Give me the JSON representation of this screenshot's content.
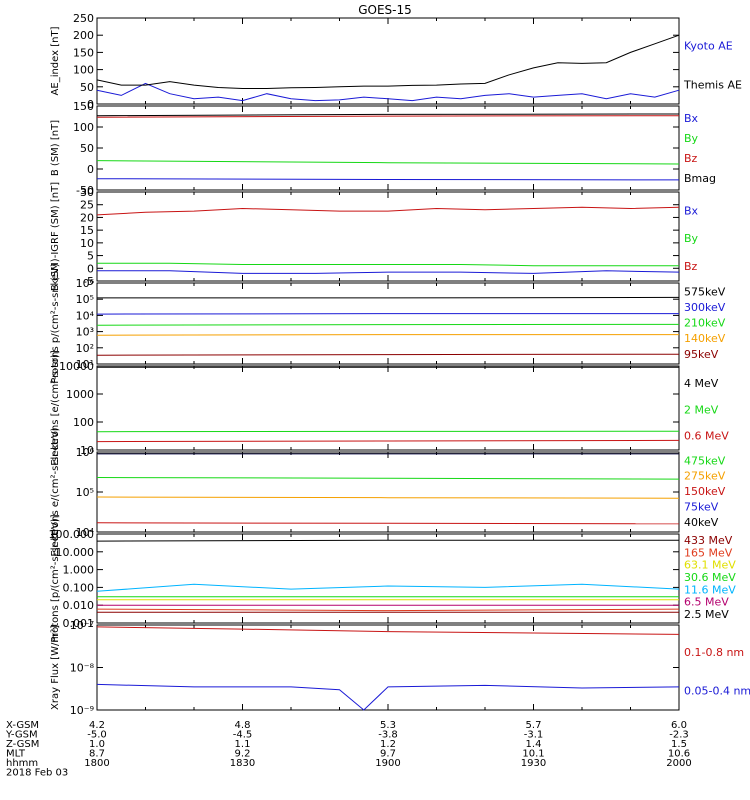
{
  "title": "GOES-15",
  "colors": {
    "black": "#000000",
    "blue": "#1a1ad6",
    "green": "#16d816",
    "red": "#c81414",
    "darkred": "#8b0000",
    "orange": "#f5a000",
    "yellow": "#e0e000",
    "cyan": "#00b4ff",
    "magenta": "#b4006e",
    "red2": "#e03c1e"
  },
  "orbit_table": {
    "row_labels": [
      "X-GSM",
      "Y-GSM",
      "Z-GSM",
      "MLT",
      "hhmm",
      "2018 Feb 03"
    ],
    "columns": [
      [
        "4.2",
        "-5.0",
        "1.0",
        "8.7",
        "1800"
      ],
      [
        "4.8",
        "-4.5",
        "1.1",
        "9.2",
        "1830"
      ],
      [
        "5.3",
        "-3.8",
        "1.2",
        "9.7",
        "1900"
      ],
      [
        "5.7",
        "-3.1",
        "1.4",
        "10.1",
        "1930"
      ],
      [
        "6.0",
        "-2.3",
        "1.5",
        "10.6",
        "2000"
      ]
    ]
  },
  "chart_data": [
    {
      "type": "line",
      "ylabel": "AE_index [nT]",
      "x": [
        1800,
        2000
      ],
      "ylim": [
        0,
        250
      ],
      "yticks": [
        "0",
        "50",
        "100",
        "150",
        "200",
        "250"
      ],
      "series": [
        {
          "name": "Kyoto AE",
          "color": "blue",
          "x": [
            1800,
            1805,
            1810,
            1815,
            1820,
            1825,
            1830,
            1835,
            1840,
            1845,
            1850,
            1855,
            1900,
            1905,
            1910,
            1915,
            1920,
            1925,
            1930,
            1935,
            1940,
            1945,
            1950,
            1955,
            2000
          ],
          "values": [
            40,
            25,
            60,
            30,
            15,
            20,
            10,
            30,
            15,
            10,
            12,
            20,
            15,
            10,
            20,
            15,
            25,
            30,
            20,
            25,
            30,
            15,
            30,
            20,
            40
          ]
        },
        {
          "name": "Themis AE",
          "color": "black",
          "x": [
            1800,
            1805,
            1810,
            1815,
            1820,
            1825,
            1830,
            1835,
            1840,
            1845,
            1850,
            1855,
            1900,
            1905,
            1910,
            1915,
            1920,
            1925,
            1930,
            1935,
            1940,
            1945,
            1950,
            1955,
            2000
          ],
          "values": [
            70,
            55,
            55,
            65,
            55,
            48,
            45,
            45,
            47,
            48,
            50,
            52,
            52,
            54,
            55,
            58,
            60,
            85,
            105,
            120,
            118,
            120,
            150,
            175,
            200
          ]
        }
      ]
    },
    {
      "type": "line",
      "ylabel": "B (SM) [nT]",
      "x": [
        1800,
        2000
      ],
      "ylim": [
        -50,
        150
      ],
      "yticks": [
        "-50",
        "0",
        "50",
        "100",
        "150"
      ],
      "series": [
        {
          "name": "Bx",
          "color": "blue",
          "x": [
            1800,
            1900,
            2000
          ],
          "values": [
            -23,
            -25,
            -26
          ]
        },
        {
          "name": "By",
          "color": "green",
          "x": [
            1800,
            1900,
            2000
          ],
          "values": [
            20,
            15,
            12
          ]
        },
        {
          "name": "Bz",
          "color": "red",
          "x": [
            1800,
            1900,
            2000
          ],
          "values": [
            123,
            126,
            127
          ]
        },
        {
          "name": "Bmag",
          "color": "black",
          "x": [
            1800,
            1900,
            2000
          ],
          "values": [
            127,
            130,
            131
          ]
        }
      ]
    },
    {
      "type": "line",
      "ylabel": "B (SM)-IGRF (SM) [nT]",
      "x": [
        1800,
        2000
      ],
      "ylim": [
        -5,
        30
      ],
      "yticks": [
        "-5",
        "0",
        "5",
        "10",
        "15",
        "20",
        "25",
        "30"
      ],
      "series": [
        {
          "name": "Bx",
          "color": "blue",
          "x": [
            1800,
            1815,
            1830,
            1845,
            1900,
            1915,
            1930,
            1945,
            2000
          ],
          "values": [
            -1,
            -1,
            -2,
            -2,
            -1.5,
            -1.5,
            -2,
            -1,
            -1.5
          ]
        },
        {
          "name": "By",
          "color": "green",
          "x": [
            1800,
            1815,
            1830,
            1845,
            1900,
            1915,
            1930,
            1945,
            2000
          ],
          "values": [
            2,
            2,
            1.5,
            1.5,
            1.5,
            1.5,
            1,
            1,
            1
          ]
        },
        {
          "name": "Bz",
          "color": "red",
          "x": [
            1800,
            1810,
            1820,
            1830,
            1840,
            1850,
            1900,
            1910,
            1920,
            1930,
            1940,
            1950,
            2000
          ],
          "values": [
            21,
            22,
            22.5,
            23.5,
            23,
            22.5,
            22.5,
            23.5,
            23,
            23.5,
            24,
            23.5,
            24
          ]
        }
      ]
    },
    {
      "type": "line",
      "ylabel": "Protons p/(cm²-s-sr-keV)",
      "x": [
        1800,
        2000
      ],
      "scale": "log",
      "ylim": [
        10,
        1000000
      ],
      "yticks": [
        "10¹",
        "10²",
        "10³",
        "10⁴",
        "10⁵",
        "10⁶"
      ],
      "series": [
        {
          "name": "575keV",
          "color": "black",
          "x": [
            1800,
            1900,
            2000
          ],
          "values": [
            120000,
            120000,
            130000
          ]
        },
        {
          "name": "300keV",
          "color": "blue",
          "x": [
            1800,
            1900,
            2000
          ],
          "values": [
            12000,
            13000,
            13000
          ]
        },
        {
          "name": "210keV",
          "color": "green",
          "x": [
            1800,
            1900,
            2000
          ],
          "values": [
            2500,
            2700,
            2800
          ]
        },
        {
          "name": "140keV",
          "color": "orange",
          "x": [
            1800,
            1900,
            2000
          ],
          "values": [
            600,
            650,
            650
          ]
        },
        {
          "name": "95keV",
          "color": "darkred",
          "x": [
            1800,
            1900,
            2000
          ],
          "values": [
            35,
            38,
            40
          ]
        }
      ]
    },
    {
      "type": "line",
      "ylabel": "Electrons [e/(cm²-s-sr)]",
      "x": [
        1800,
        2000
      ],
      "scale": "log",
      "ylim": [
        10,
        10000
      ],
      "yticks": [
        "10",
        "100",
        "1000",
        "10000"
      ],
      "series": [
        {
          "name": "4 MeV",
          "color": "black",
          "x": [
            1800,
            1900,
            2000
          ],
          "values": [
            9000,
            9000,
            9000
          ]
        },
        {
          "name": "2 MeV",
          "color": "green",
          "x": [
            1800,
            1900,
            2000
          ],
          "values": [
            45,
            46,
            47
          ]
        },
        {
          "name": "0.6 MeV",
          "color": "red",
          "x": [
            1800,
            1900,
            2000
          ],
          "values": [
            20,
            21,
            22
          ]
        }
      ]
    },
    {
      "type": "line",
      "ylabel": "Electrons e/(cm²-s-sr-keV)",
      "x": [
        1800,
        2000
      ],
      "scale": "log",
      "ylim": [
        10000,
        1000000
      ],
      "yticks": [
        "10⁴",
        "10⁵",
        "10⁶"
      ],
      "series": [
        {
          "name": "475keV",
          "color": "green",
          "x": [
            1800,
            1900,
            2000
          ],
          "values": [
            230000,
            220000,
            210000
          ]
        },
        {
          "name": "275keV",
          "color": "orange",
          "x": [
            1800,
            1900,
            2000
          ],
          "values": [
            75000,
            72000,
            70000
          ]
        },
        {
          "name": "150keV",
          "color": "red",
          "x": [
            1800,
            1900,
            2000
          ],
          "values": [
            17000,
            16500,
            16000
          ]
        },
        {
          "name": "75keV",
          "color": "blue",
          "x": [
            1800,
            1900,
            2000
          ],
          "values": [
            900000,
            900000,
            900000
          ]
        },
        {
          "name": "40keV",
          "color": "black",
          "x": [
            1800,
            1900,
            2000
          ],
          "values": [
            900000,
            900000,
            900000
          ]
        }
      ]
    },
    {
      "type": "line",
      "ylabel": "Protons [p/(cm²-s-sr-keV)]",
      "x": [
        1800,
        2000
      ],
      "scale": "log",
      "ylim": [
        0.001,
        100
      ],
      "yticks": [
        "0.001",
        "0.010",
        "0.100",
        "1.000",
        "10.000",
        "100.000"
      ],
      "series": [
        {
          "name": "433 MeV",
          "color": "darkred",
          "x": [
            1800,
            1900,
            2000
          ],
          "values": [
            0.004,
            0.004,
            0.004
          ]
        },
        {
          "name": "165 MeV",
          "color": "red2",
          "x": [
            1800,
            1900,
            2000
          ],
          "values": [
            0.006,
            0.005,
            0.006
          ]
        },
        {
          "name": "63.1 MeV",
          "color": "yellow",
          "x": [
            1800,
            1900,
            2000
          ],
          "values": [
            0.02,
            0.02,
            0.02
          ]
        },
        {
          "name": "30.6 MeV",
          "color": "green",
          "x": [
            1800,
            1900,
            2000
          ],
          "values": [
            0.03,
            0.03,
            0.03
          ]
        },
        {
          "name": "11.6 MeV",
          "color": "cyan",
          "x": [
            1800,
            1820,
            1840,
            1900,
            1920,
            1940,
            2000
          ],
          "values": [
            0.06,
            0.15,
            0.08,
            0.12,
            0.1,
            0.15,
            0.08
          ]
        },
        {
          "name": "6.5 MeV",
          "color": "magenta",
          "x": [
            1800,
            1900,
            2000
          ],
          "values": [
            0.01,
            0.01,
            0.01
          ]
        },
        {
          "name": "2.5 MeV",
          "color": "black",
          "x": [
            1800,
            1900,
            2000
          ],
          "values": [
            40,
            45,
            45
          ]
        }
      ]
    },
    {
      "type": "line",
      "ylabel": "Xray Flux [W/m²]",
      "x": [
        1800,
        2000
      ],
      "scale": "log",
      "ylim": [
        1e-09,
        1e-07
      ],
      "yticks": [
        "10⁻⁹",
        "10⁻⁸",
        "10⁻⁷"
      ],
      "series": [
        {
          "name": "0.1-0.8 nm",
          "color": "red",
          "x": [
            1800,
            1830,
            1900,
            1930,
            2000
          ],
          "values": [
            9e-08,
            8e-08,
            7e-08,
            6.5e-08,
            6e-08
          ]
        },
        {
          "name": "0.05-0.4 nm",
          "color": "blue",
          "x": [
            1800,
            1820,
            1840,
            1850,
            1855,
            1900,
            1920,
            1940,
            2000
          ],
          "values": [
            4e-09,
            3.5e-09,
            3.5e-09,
            3e-09,
            1e-09,
            3.5e-09,
            3.8e-09,
            3.3e-09,
            3.5e-09
          ]
        }
      ]
    }
  ]
}
